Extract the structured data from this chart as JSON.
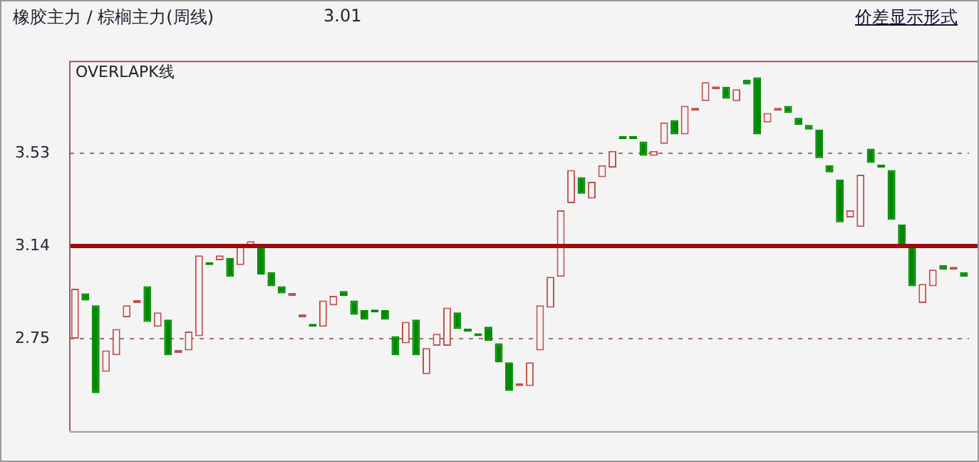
{
  "chart_data": {
    "type": "candlestick",
    "title": "橡胶主力 / 棕榈主力(周线)",
    "subtitle": "OVERLAPK线",
    "annotations": [
      "3.01",
      "价差显示形式"
    ],
    "categories": [
      null,
      null,
      null,
      null,
      null,
      null,
      null,
      null,
      null,
      null,
      null,
      null,
      null,
      null,
      null,
      null,
      null,
      null,
      null,
      null,
      null,
      null,
      null,
      null,
      null,
      null,
      null,
      null,
      null,
      null,
      null,
      null,
      null,
      null,
      null,
      null,
      null,
      null,
      null,
      null,
      null,
      null,
      null,
      null,
      null,
      null,
      null,
      null,
      null,
      null,
      null,
      null,
      null,
      null,
      null,
      null,
      null,
      null,
      null,
      null,
      null,
      null,
      null,
      null,
      null,
      null,
      null,
      null,
      null,
      null,
      null,
      null,
      null,
      null,
      null,
      null,
      null,
      null,
      null,
      null,
      null,
      null,
      null,
      null,
      null,
      null,
      null
    ],
    "ohlc": [
      [
        2.75,
        2.96,
        2.75,
        2.96
      ],
      [
        2.94,
        2.94,
        2.91,
        2.91
      ],
      [
        2.89,
        2.89,
        2.52,
        2.52
      ],
      [
        2.61,
        2.7,
        2.61,
        2.7
      ],
      [
        2.68,
        2.79,
        2.68,
        2.79
      ],
      [
        2.84,
        2.89,
        2.84,
        2.89
      ],
      [
        2.9,
        2.91,
        2.9,
        2.91
      ],
      [
        2.97,
        2.97,
        2.82,
        2.82
      ],
      [
        2.8,
        2.86,
        2.8,
        2.86
      ],
      [
        2.83,
        2.83,
        2.68,
        2.68
      ],
      [
        2.69,
        2.7,
        2.69,
        2.7
      ],
      [
        2.7,
        2.78,
        2.7,
        2.78
      ],
      [
        2.76,
        3.1,
        2.76,
        3.1
      ],
      [
        3.07,
        3.07,
        3.06,
        3.06
      ],
      [
        3.08,
        3.1,
        3.08,
        3.1
      ],
      [
        3.09,
        3.09,
        3.01,
        3.01
      ],
      [
        3.06,
        3.14,
        3.06,
        3.14
      ],
      [
        3.14,
        3.16,
        3.14,
        3.16
      ],
      [
        3.14,
        3.14,
        3.02,
        3.02
      ],
      [
        3.03,
        3.03,
        2.97,
        2.97
      ],
      [
        2.97,
        2.97,
        2.94,
        2.94
      ],
      [
        2.93,
        2.94,
        2.93,
        2.94
      ],
      [
        2.84,
        2.85,
        2.84,
        2.85
      ],
      [
        2.81,
        2.81,
        2.8,
        2.8
      ],
      [
        2.8,
        2.91,
        2.8,
        2.91
      ],
      [
        2.89,
        2.93,
        2.89,
        2.93
      ],
      [
        2.95,
        2.95,
        2.93,
        2.93
      ],
      [
        2.91,
        2.91,
        2.85,
        2.85
      ],
      [
        2.87,
        2.87,
        2.83,
        2.83
      ],
      [
        2.87,
        2.87,
        2.86,
        2.86
      ],
      [
        2.87,
        2.87,
        2.83,
        2.83
      ],
      [
        2.76,
        2.76,
        2.68,
        2.68
      ],
      [
        2.73,
        2.82,
        2.73,
        2.82
      ],
      [
        2.83,
        2.83,
        2.68,
        2.68
      ],
      [
        2.6,
        2.71,
        2.6,
        2.71
      ],
      [
        2.72,
        2.77,
        2.72,
        2.77
      ],
      [
        2.72,
        2.88,
        2.72,
        2.88
      ],
      [
        2.86,
        2.86,
        2.79,
        2.79
      ],
      [
        2.79,
        2.79,
        2.78,
        2.78
      ],
      [
        2.77,
        2.77,
        2.76,
        2.76
      ],
      [
        2.8,
        2.8,
        2.74,
        2.74
      ],
      [
        2.73,
        2.73,
        2.65,
        2.65
      ],
      [
        2.65,
        2.65,
        2.53,
        2.53
      ],
      [
        2.55,
        2.56,
        2.55,
        2.56
      ],
      [
        2.55,
        2.65,
        2.55,
        2.65
      ],
      [
        2.7,
        2.89,
        2.7,
        2.89
      ],
      [
        2.88,
        3.01,
        2.88,
        3.01
      ],
      [
        3.01,
        3.29,
        3.01,
        3.29
      ],
      [
        3.32,
        3.46,
        3.32,
        3.46
      ],
      [
        3.43,
        3.43,
        3.36,
        3.36
      ],
      [
        3.34,
        3.41,
        3.34,
        3.41
      ],
      [
        3.43,
        3.48,
        3.43,
        3.48
      ],
      [
        3.47,
        3.54,
        3.47,
        3.54
      ],
      [
        3.6,
        3.6,
        3.59,
        3.59
      ],
      [
        3.6,
        3.6,
        3.59,
        3.59
      ],
      [
        3.58,
        3.58,
        3.52,
        3.52
      ],
      [
        3.52,
        3.54,
        3.52,
        3.54
      ],
      [
        3.57,
        3.66,
        3.57,
        3.66
      ],
      [
        3.67,
        3.67,
        3.61,
        3.61
      ],
      [
        3.61,
        3.73,
        3.61,
        3.73
      ],
      [
        3.71,
        3.72,
        3.71,
        3.72
      ],
      [
        3.75,
        3.83,
        3.75,
        3.83
      ],
      [
        3.8,
        3.81,
        3.8,
        3.81
      ],
      [
        3.81,
        3.81,
        3.76,
        3.76
      ],
      [
        3.75,
        3.8,
        3.75,
        3.8
      ],
      [
        3.84,
        3.84,
        3.82,
        3.82
      ],
      [
        3.85,
        3.85,
        3.61,
        3.61
      ],
      [
        3.66,
        3.7,
        3.66,
        3.7
      ],
      [
        3.71,
        3.72,
        3.71,
        3.72
      ],
      [
        3.73,
        3.73,
        3.7,
        3.7
      ],
      [
        3.68,
        3.68,
        3.65,
        3.65
      ],
      [
        3.65,
        3.65,
        3.63,
        3.63
      ],
      [
        3.63,
        3.63,
        3.51,
        3.51
      ],
      [
        3.48,
        3.48,
        3.45,
        3.45
      ],
      [
        3.42,
        3.42,
        3.24,
        3.24
      ],
      [
        3.26,
        3.29,
        3.26,
        3.29
      ],
      [
        3.22,
        3.44,
        3.22,
        3.44
      ],
      [
        3.55,
        3.55,
        3.49,
        3.49
      ],
      [
        3.48,
        3.48,
        3.47,
        3.47
      ],
      [
        3.46,
        3.46,
        3.25,
        3.25
      ],
      [
        3.23,
        3.23,
        3.14,
        3.14
      ],
      [
        3.14,
        3.14,
        2.97,
        2.97
      ],
      [
        2.9,
        2.98,
        2.9,
        2.98
      ],
      [
        2.97,
        3.04,
        2.97,
        3.04
      ],
      [
        3.06,
        3.06,
        3.04,
        3.04
      ],
      [
        3.04,
        3.05,
        3.04,
        3.05
      ],
      [
        3.03,
        3.03,
        3.01,
        3.01
      ]
    ],
    "ylim": [
      2.36,
      3.92
    ],
    "yticks": [
      2.75,
      3.14,
      3.53
    ],
    "grid": "y",
    "ref_lines": [
      {
        "axis": "y",
        "value": 3.14,
        "color": "#9e0b0f"
      }
    ]
  }
}
